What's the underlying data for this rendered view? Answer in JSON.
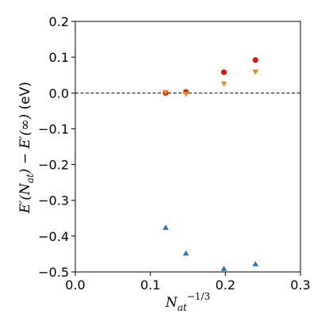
{
  "chart_data": {
    "type": "scatter",
    "xlabel": "N_at^{-1/3}",
    "ylabel": "E'(N_at) − E'(∞) (eV)",
    "xlim": [
      0.0,
      0.3
    ],
    "ylim": [
      -0.5,
      0.2
    ],
    "xticks": [
      "0.0",
      "0.1",
      "0.2",
      "0.3"
    ],
    "yticks": [
      "−0.5",
      "−0.4",
      "−0.3",
      "−0.2",
      "−0.1",
      "0.0",
      "0.1",
      "0.2"
    ],
    "grid": false,
    "reference_line": {
      "y": 0.0,
      "style": "dashed",
      "color": "#000000"
    },
    "series": [
      {
        "marker": "circle",
        "color": "#e8140c",
        "x": [
          0.1204,
          0.1474,
          0.198,
          0.24
        ],
        "y": [
          0.0,
          0.003,
          0.058,
          0.092
        ]
      },
      {
        "marker": "triangle-down",
        "color": "#f08a1a",
        "x": [
          0.1204,
          0.1474,
          0.198,
          0.24
        ],
        "y": [
          0.002,
          -0.003,
          0.026,
          0.059
        ]
      },
      {
        "marker": "triangle-up",
        "color": "#2677b4",
        "x": [
          0.1204,
          0.1474,
          0.198,
          0.24
        ],
        "y": [
          -0.376,
          -0.448,
          -0.491,
          -0.478
        ]
      }
    ]
  }
}
